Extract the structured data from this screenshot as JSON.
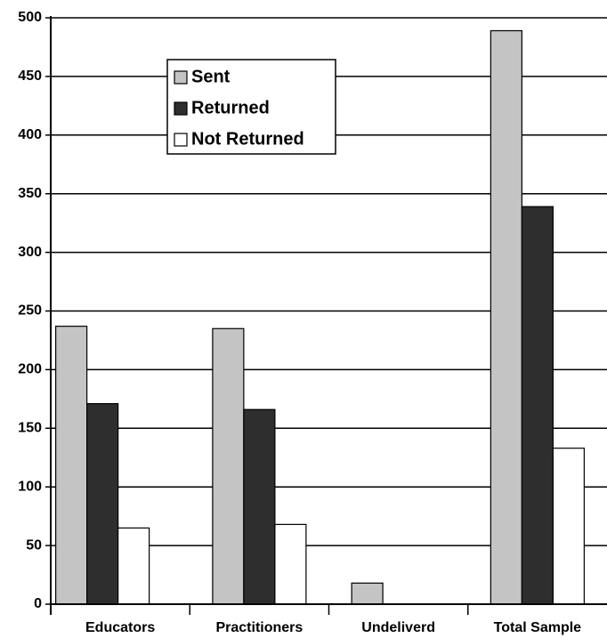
{
  "chart_data": {
    "type": "bar",
    "categories": [
      "Educators",
      "Practitioners",
      "Undeliverd",
      "Total Sample"
    ],
    "series": [
      {
        "name": "Sent",
        "color": "#c4c4c4",
        "values": [
          237,
          235,
          18,
          489
        ]
      },
      {
        "name": "Returned",
        "color": "#2e2e2e",
        "values": [
          171,
          166,
          0,
          339
        ]
      },
      {
        "name": "Not Returned",
        "color": "#ffffff",
        "values": [
          65,
          68,
          0,
          133
        ]
      }
    ],
    "ylim": [
      0,
      500
    ],
    "yticks": [
      0,
      50,
      100,
      150,
      200,
      250,
      300,
      350,
      400,
      450,
      500
    ],
    "grid": true,
    "legend": "top-left"
  }
}
